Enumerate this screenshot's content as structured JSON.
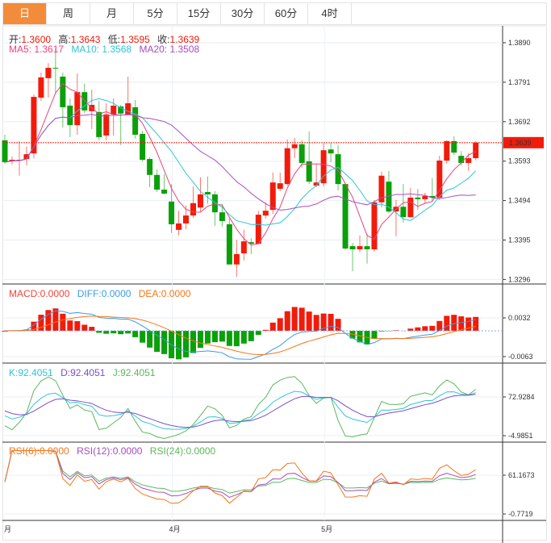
{
  "tabs": [
    {
      "label": "日",
      "active": true
    },
    {
      "label": "周"
    },
    {
      "label": "月"
    },
    {
      "label": "5分"
    },
    {
      "label": "15分"
    },
    {
      "label": "30分"
    },
    {
      "label": "60分"
    },
    {
      "label": "4时"
    }
  ],
  "ohlc_legend": {
    "open_label": "开:",
    "open": "1.3600",
    "high_label": "高:",
    "high": "1.3643",
    "low_label": "低:",
    "low": "1.3595",
    "close_label": "收:",
    "close": "1.3639"
  },
  "ma_legend": {
    "ma5": "MA5: 1.3617",
    "ma10": "MA10: 1.3568",
    "ma20": "MA20: 1.3508"
  },
  "macd_legend": {
    "macd": "MACD:0.0000",
    "diff": "DIFF:0.0000",
    "dea": "DEA:0.0000"
  },
  "kdj_legend": {
    "k": "K:92.4051",
    "d": "D:92.4051",
    "j": "J:92.4051"
  },
  "rsi_legend": {
    "rsi6": "RSI(6):0.0000",
    "rsi12": "RSI(12):0.0000",
    "rsi24": "RSI(24):0.0000"
  },
  "price_axis": [
    "1.3890",
    "1.3791",
    "1.3692",
    "1.3593",
    "1.3494",
    "1.3395",
    "1.3296"
  ],
  "current_price": "1.3639",
  "macd_axis": [
    "0.0032",
    "-0.0063"
  ],
  "kdj_axis": [
    "72.9284",
    "-4.9851"
  ],
  "rsi_axis": [
    "61.1673",
    "-0.7719"
  ],
  "x_axis": [
    "月",
    "4月",
    "5月"
  ],
  "colors": {
    "up": "#f21b0b",
    "down": "#0aa00a",
    "ma5": "#e8457a",
    "ma10": "#2ec4da",
    "ma20": "#a64ec0",
    "accent": "#f28c3a",
    "diff": "#3b9be8",
    "dea": "#f5761a",
    "k": "#2ec4da",
    "d": "#7b4fc8",
    "j": "#5cb85c",
    "rsi6": "#f5761a",
    "rsi12": "#a64ec0",
    "rsi24": "#5cb85c"
  },
  "chart_data": {
    "type": "candlestick",
    "fields": [
      "open",
      "high",
      "low",
      "close"
    ],
    "y_range": [
      1.3296,
      1.389
    ],
    "candles": [
      [
        1.3645,
        1.3659,
        1.3586,
        1.359
      ],
      [
        1.3592,
        1.3604,
        1.3584,
        1.3596
      ],
      [
        1.3594,
        1.3643,
        1.3556,
        1.3596
      ],
      [
        1.3598,
        1.3629,
        1.3582,
        1.361
      ],
      [
        1.3612,
        1.376,
        1.36,
        1.3754
      ],
      [
        1.3752,
        1.3815,
        1.3744,
        1.3803
      ],
      [
        1.3801,
        1.3839,
        1.3752,
        1.3827
      ],
      [
        1.3827,
        1.3876,
        1.3764,
        1.3825
      ],
      [
        1.3805,
        1.3815,
        1.3677,
        1.3728
      ],
      [
        1.3732,
        1.375,
        1.3653,
        1.3683
      ],
      [
        1.3683,
        1.3813,
        1.3659,
        1.3766
      ],
      [
        1.3766,
        1.3787,
        1.3714,
        1.372
      ],
      [
        1.3718,
        1.3772,
        1.3673,
        1.3734
      ],
      [
        1.3716,
        1.3744,
        1.3645,
        1.3653
      ],
      [
        1.3657,
        1.3738,
        1.3645,
        1.371
      ],
      [
        1.371,
        1.375,
        1.3657,
        1.3732
      ],
      [
        1.373,
        1.3734,
        1.3633,
        1.3712
      ],
      [
        1.371,
        1.3805,
        1.3708,
        1.3738
      ],
      [
        1.3728,
        1.3746,
        1.3649,
        1.3659
      ],
      [
        1.3661,
        1.3669,
        1.3592,
        1.3596
      ],
      [
        1.3598,
        1.3602,
        1.3527,
        1.3558
      ],
      [
        1.3558,
        1.3572,
        1.3515,
        1.3521
      ],
      [
        1.3521,
        1.356,
        1.3509,
        1.3511
      ],
      [
        1.3491,
        1.3535,
        1.3412,
        1.3434
      ],
      [
        1.342,
        1.3468,
        1.3406,
        1.3436
      ],
      [
        1.3436,
        1.3481,
        1.3422,
        1.3456
      ],
      [
        1.3456,
        1.3529,
        1.345,
        1.3487
      ],
      [
        1.3476,
        1.3552,
        1.3466,
        1.3509
      ],
      [
        1.3515,
        1.3554,
        1.3485,
        1.3509
      ],
      [
        1.3509,
        1.3517,
        1.343,
        1.3464
      ],
      [
        1.3464,
        1.3485,
        1.3428,
        1.3442
      ],
      [
        1.3434,
        1.345,
        1.3333,
        1.3333
      ],
      [
        1.3333,
        1.3395,
        1.3302,
        1.3359
      ],
      [
        1.3361,
        1.342,
        1.3343,
        1.3391
      ],
      [
        1.3389,
        1.3399,
        1.3359,
        1.3385
      ],
      [
        1.3385,
        1.3468,
        1.3383,
        1.3458
      ],
      [
        1.3456,
        1.3489,
        1.3448,
        1.3468
      ],
      [
        1.347,
        1.3564,
        1.346,
        1.3539
      ],
      [
        1.3523,
        1.3564,
        1.3517,
        1.3537
      ],
      [
        1.3535,
        1.3647,
        1.3531,
        1.3625
      ],
      [
        1.3625,
        1.3651,
        1.36,
        1.3635
      ],
      [
        1.3635,
        1.3645,
        1.3576,
        1.3588
      ],
      [
        1.3592,
        1.3667,
        1.3535,
        1.3541
      ],
      [
        1.3531,
        1.3584,
        1.3527,
        1.3539
      ],
      [
        1.3537,
        1.3637,
        1.3529,
        1.362
      ],
      [
        1.3622,
        1.3639,
        1.359,
        1.3612
      ],
      [
        1.361,
        1.3633,
        1.3519,
        1.3535
      ],
      [
        1.3535,
        1.3537,
        1.3371,
        1.3373
      ],
      [
        1.3379,
        1.3387,
        1.3316,
        1.3371
      ],
      [
        1.3371,
        1.3406,
        1.3363,
        1.3379
      ],
      [
        1.3379,
        1.341,
        1.3335,
        1.3371
      ],
      [
        1.3371,
        1.3495,
        1.3365,
        1.3489
      ],
      [
        1.3489,
        1.3566,
        1.3476,
        1.3556
      ],
      [
        1.3541,
        1.3568,
        1.3462,
        1.3466
      ],
      [
        1.3466,
        1.3495,
        1.3404,
        1.3478
      ],
      [
        1.3478,
        1.3535,
        1.3438,
        1.3452
      ],
      [
        1.3452,
        1.3525,
        1.345,
        1.3501
      ],
      [
        1.3501,
        1.3523,
        1.347,
        1.3497
      ],
      [
        1.3497,
        1.3513,
        1.3487,
        1.3505
      ],
      [
        1.3505,
        1.355,
        1.3493,
        1.3501
      ],
      [
        1.3501,
        1.3606,
        1.3495,
        1.3594
      ],
      [
        1.3594,
        1.3645,
        1.3586,
        1.3643
      ],
      [
        1.3643,
        1.3655,
        1.3608,
        1.3614
      ],
      [
        1.3606,
        1.3618,
        1.3582,
        1.3588
      ],
      [
        1.3588,
        1.3612,
        1.3568,
        1.36
      ],
      [
        1.36,
        1.3643,
        1.3595,
        1.3639
      ]
    ],
    "x_month_marks": [
      {
        "label": "4月",
        "index": 23
      },
      {
        "label": "5月",
        "index": 44
      }
    ]
  }
}
